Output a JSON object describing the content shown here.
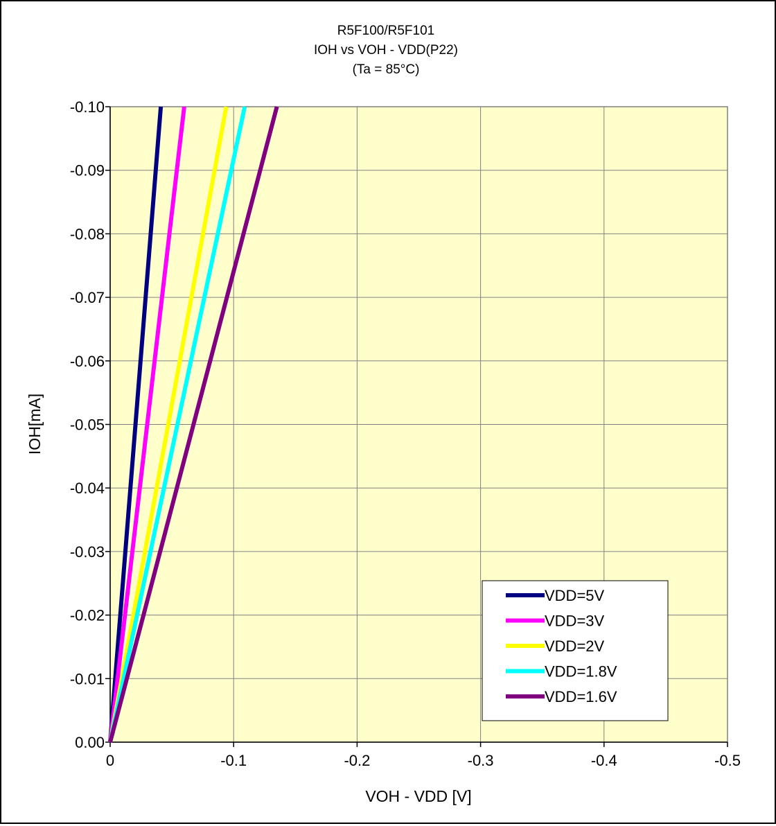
{
  "chart_data": {
    "type": "line",
    "title": [
      "R5F100/R5F101",
      "IOH vs VOH  - VDD(P22)",
      "(Ta =  85°C)"
    ],
    "xlabel": "VOH - VDD [V]",
    "ylabel": "IOH[mA]",
    "xlim": [
      0,
      -0.5
    ],
    "ylim": [
      0,
      -0.1
    ],
    "x_ticks": [
      0,
      -0.1,
      -0.2,
      -0.3,
      -0.4,
      -0.5
    ],
    "x_tick_labels": [
      "0",
      "-0.1",
      "-0.2",
      "-0.3",
      "-0.4",
      "-0.5"
    ],
    "y_ticks": [
      0,
      -0.01,
      -0.02,
      -0.03,
      -0.04,
      -0.05,
      -0.06,
      -0.07,
      -0.08,
      -0.09,
      -0.1
    ],
    "y_tick_labels": [
      "0.00",
      "-0.01",
      "-0.02",
      "-0.03",
      "-0.04",
      "-0.05",
      "-0.06",
      "-0.07",
      "-0.08",
      "-0.09",
      "-0.10"
    ],
    "grid": true,
    "plot_background": "#FFFFCC",
    "legend_position": "bottom-right",
    "series": [
      {
        "name": "VDD=5V",
        "color": "#000080",
        "x": [
          0,
          -0.041
        ],
        "y": [
          0,
          -0.1
        ]
      },
      {
        "name": "VDD=3V",
        "color": "#FF00FF",
        "x": [
          0,
          -0.06
        ],
        "y": [
          0,
          -0.1
        ]
      },
      {
        "name": "VDD=2V",
        "color": "#FFFF00",
        "x": [
          0,
          -0.094
        ],
        "y": [
          0,
          -0.1
        ]
      },
      {
        "name": "VDD=1.8V",
        "color": "#00FFFF",
        "x": [
          0,
          -0.109
        ],
        "y": [
          0,
          -0.1
        ]
      },
      {
        "name": "VDD=1.6V",
        "color": "#800080",
        "x": [
          0,
          -0.135
        ],
        "y": [
          0,
          -0.1
        ]
      }
    ]
  }
}
